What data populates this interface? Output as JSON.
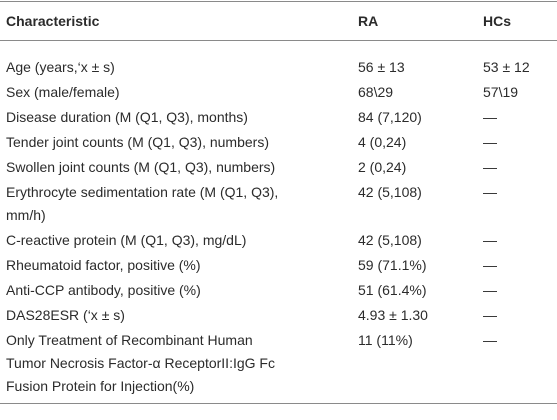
{
  "table": {
    "header": [
      "Characteristic",
      "RA",
      "HCs"
    ],
    "rows": [
      [
        "Age (years,‘x ± s)",
        "56 ± 13",
        "53 ± 12"
      ],
      [
        "Sex (male/female)",
        "68\\29",
        "57\\19"
      ],
      [
        "Disease duration (M (Q1, Q3), months)",
        "84 (7,120)",
        "—"
      ],
      [
        "Tender joint counts (M (Q1, Q3), numbers)",
        "4 (0,24)",
        "—"
      ],
      [
        "Swollen joint counts (M (Q1, Q3), numbers)",
        "2 (0,24)",
        "—"
      ],
      [
        [
          "Erythrocyte sedimentation rate (M (Q1, Q3),",
          "mm/h)"
        ],
        "42 (5,108)",
        "—"
      ],
      [
        "C-reactive protein (M (Q1, Q3), mg/dL)",
        "42 (5,108)",
        "—"
      ],
      [
        "Rheumatoid factor, positive (%)",
        "59 (71.1%)",
        "—"
      ],
      [
        "Anti-CCP antibody, positive (%)",
        "51 (61.4%)",
        "—"
      ],
      [
        "DAS28ESR (‘x ± s)",
        "4.93 ± 1.30",
        "—"
      ],
      [
        [
          "Only Treatment of Recombinant Human",
          "Tumor Necrosis Factor-α ReceptorII:IgG Fc",
          "Fusion Protein for Injection(%)"
        ],
        "11 (11%)",
        "—"
      ]
    ]
  }
}
